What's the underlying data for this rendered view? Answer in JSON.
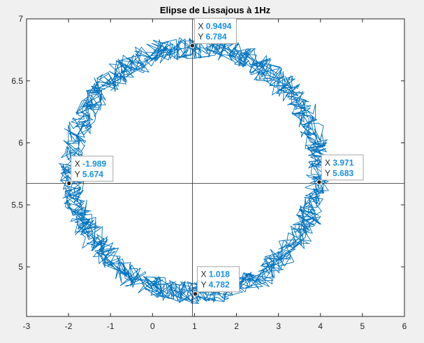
{
  "chart_data": {
    "type": "line",
    "title": "Elipse de Lissajous à 1Hz",
    "xlabel": "",
    "ylabel": "",
    "xlim": [
      -3,
      6
    ],
    "ylim": [
      4.6,
      7
    ],
    "xticks": [
      -3,
      -2,
      -1,
      0,
      1,
      2,
      3,
      4,
      5,
      6
    ],
    "yticks": [
      5,
      5.5,
      6,
      6.5,
      7
    ],
    "xtick_labels": [
      "-3",
      "-2",
      "-1",
      "0",
      "1",
      "2",
      "3",
      "4",
      "5",
      "6"
    ],
    "ytick_labels": [
      "5",
      "5.5",
      "6",
      "6.5",
      "7"
    ],
    "grid": false,
    "series": [
      {
        "color": "#0072bd",
        "shape": "noisy ellipse",
        "center": [
          1.0,
          5.78
        ],
        "semi_axis_x": 2.95,
        "semi_axis_y": 0.99,
        "noise_x": 0.28,
        "noise_y": 0.09
      }
    ],
    "crosshair": {
      "x": 0.9494,
      "y": 5.674,
      "color": "#262626"
    },
    "datatips": [
      {
        "x": 0.9494,
        "y": 6.784,
        "x_label": "X",
        "y_label": "Y",
        "x_text": "0.9494",
        "y_text": "6.784"
      },
      {
        "x": -1.989,
        "y": 5.674,
        "x_label": "X",
        "y_label": "Y",
        "x_text": "-1.989",
        "y_text": "5.674"
      },
      {
        "x": 3.971,
        "y": 5.683,
        "x_label": "X",
        "y_label": "Y",
        "x_text": "3.971",
        "y_text": "5.683"
      },
      {
        "x": 1.018,
        "y": 4.782,
        "x_label": "X",
        "y_label": "Y",
        "x_text": "1.018",
        "y_text": "4.782"
      }
    ]
  }
}
